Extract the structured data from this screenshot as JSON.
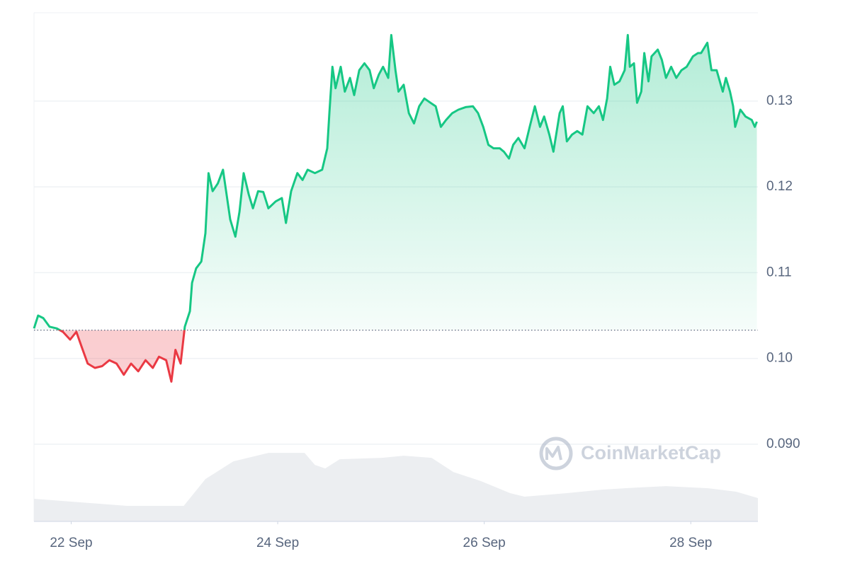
{
  "chart_data": {
    "type": "line",
    "watermark": "CoinMarketCap",
    "xlim": [
      21.64,
      28.65
    ],
    "xticks": [
      {
        "value": 22,
        "label": "22 Sep"
      },
      {
        "value": 24,
        "label": "24 Sep"
      },
      {
        "value": 26,
        "label": "26 Sep"
      },
      {
        "value": 28,
        "label": "28 Sep"
      }
    ],
    "ylim": [
      0.081,
      0.1403
    ],
    "yticks": [
      {
        "value": 0.09,
        "label": "0.090"
      },
      {
        "value": 0.1,
        "label": "0.10"
      },
      0.11,
      0.12,
      0.13
    ],
    "grid": true,
    "baseline": 0.1033,
    "up_color": "#16c784",
    "down_color": "#ea3943",
    "x": [
      21.64,
      21.68,
      21.73,
      21.79,
      21.86,
      21.92,
      21.99,
      22.05,
      22.1,
      22.16,
      22.23,
      22.3,
      22.37,
      22.44,
      22.51,
      22.58,
      22.65,
      22.72,
      22.79,
      22.85,
      22.92,
      22.97,
      23.01,
      23.06,
      23.1,
      23.15,
      23.17,
      23.21,
      23.26,
      23.3,
      23.33,
      23.37,
      23.42,
      23.47,
      23.5,
      23.54,
      23.59,
      23.63,
      23.67,
      23.72,
      23.76,
      23.81,
      23.86,
      23.91,
      23.98,
      24.04,
      24.08,
      24.13,
      24.19,
      24.24,
      24.29,
      24.36,
      24.43,
      24.48,
      24.5,
      24.53,
      24.56,
      24.61,
      24.65,
      24.7,
      24.74,
      24.79,
      24.84,
      24.89,
      24.93,
      24.98,
      25.02,
      25.07,
      25.1,
      25.14,
      25.17,
      25.22,
      25.27,
      25.32,
      25.37,
      25.42,
      25.48,
      25.53,
      25.58,
      25.63,
      25.69,
      25.75,
      25.82,
      25.89,
      25.94,
      25.99,
      26.04,
      26.09,
      26.15,
      26.19,
      26.24,
      26.28,
      26.33,
      26.39,
      26.44,
      26.49,
      26.54,
      26.58,
      26.63,
      26.67,
      26.73,
      26.76,
      26.8,
      26.85,
      26.9,
      26.95,
      27.0,
      27.06,
      27.11,
      27.15,
      27.19,
      27.22,
      27.26,
      27.31,
      27.36,
      27.39,
      27.41,
      27.45,
      27.48,
      27.52,
      27.55,
      27.59,
      27.62,
      27.68,
      27.72,
      27.76,
      27.81,
      27.86,
      27.91,
      27.96,
      28.02,
      28.07,
      28.1,
      28.16,
      28.2,
      28.25,
      28.31,
      28.34,
      28.38,
      28.41,
      28.43,
      28.48,
      28.53,
      28.59,
      28.62,
      28.64
    ],
    "values": [
      0.1035,
      0.105,
      0.1047,
      0.1037,
      0.1035,
      0.1031,
      0.1022,
      0.1031,
      0.1014,
      0.0994,
      0.0989,
      0.0991,
      0.0998,
      0.0994,
      0.0981,
      0.0994,
      0.0985,
      0.0998,
      0.0989,
      0.1002,
      0.0998,
      0.0973,
      0.101,
      0.0994,
      0.1037,
      0.1055,
      0.1088,
      0.1105,
      0.1113,
      0.1146,
      0.1216,
      0.1195,
      0.1204,
      0.122,
      0.1195,
      0.1162,
      0.1142,
      0.1171,
      0.1216,
      0.1191,
      0.1175,
      0.1195,
      0.1194,
      0.1175,
      0.1183,
      0.1187,
      0.1158,
      0.1195,
      0.1216,
      0.1208,
      0.122,
      0.1216,
      0.122,
      0.1245,
      0.1286,
      0.134,
      0.1315,
      0.134,
      0.1311,
      0.1327,
      0.1307,
      0.1336,
      0.1344,
      0.1336,
      0.1315,
      0.1331,
      0.134,
      0.1327,
      0.1377,
      0.1336,
      0.1311,
      0.1319,
      0.1286,
      0.1274,
      0.1294,
      0.1303,
      0.1298,
      0.1294,
      0.127,
      0.1278,
      0.1286,
      0.129,
      0.1293,
      0.1294,
      0.1286,
      0.127,
      0.1249,
      0.1245,
      0.1245,
      0.1241,
      0.1233,
      0.1249,
      0.1257,
      0.1245,
      0.127,
      0.1294,
      0.127,
      0.1282,
      0.1261,
      0.1241,
      0.1286,
      0.1294,
      0.1253,
      0.1261,
      0.1265,
      0.1261,
      0.1294,
      0.1286,
      0.1294,
      0.1278,
      0.1303,
      0.134,
      0.1319,
      0.1323,
      0.1336,
      0.1377,
      0.134,
      0.1344,
      0.1298,
      0.1311,
      0.1356,
      0.1323,
      0.1352,
      0.136,
      0.1348,
      0.1327,
      0.134,
      0.1327,
      0.1336,
      0.134,
      0.1352,
      0.1356,
      0.1356,
      0.1368,
      0.1336,
      0.1336,
      0.1311,
      0.1327,
      0.1311,
      0.1294,
      0.127,
      0.129,
      0.1282,
      0.1278,
      0.127,
      0.1276
    ],
    "volume": {
      "color": "#eceef1",
      "axis": "y2",
      "x": [
        21.64,
        22.54,
        23.09,
        23.3,
        23.57,
        23.91,
        24.26,
        24.36,
        24.46,
        24.6,
        25.01,
        25.22,
        25.49,
        25.7,
        25.97,
        26.25,
        26.39,
        26.8,
        27.14,
        27.48,
        27.76,
        28.17,
        28.44,
        28.65
      ],
      "values": [
        32,
        22,
        22,
        60,
        85,
        97,
        97,
        80,
        75,
        88,
        90,
        93,
        90,
        70,
        57,
        40,
        35,
        40,
        45,
        48,
        50,
        47,
        42,
        33
      ]
    },
    "y2lim": [
      0,
      720
    ]
  }
}
